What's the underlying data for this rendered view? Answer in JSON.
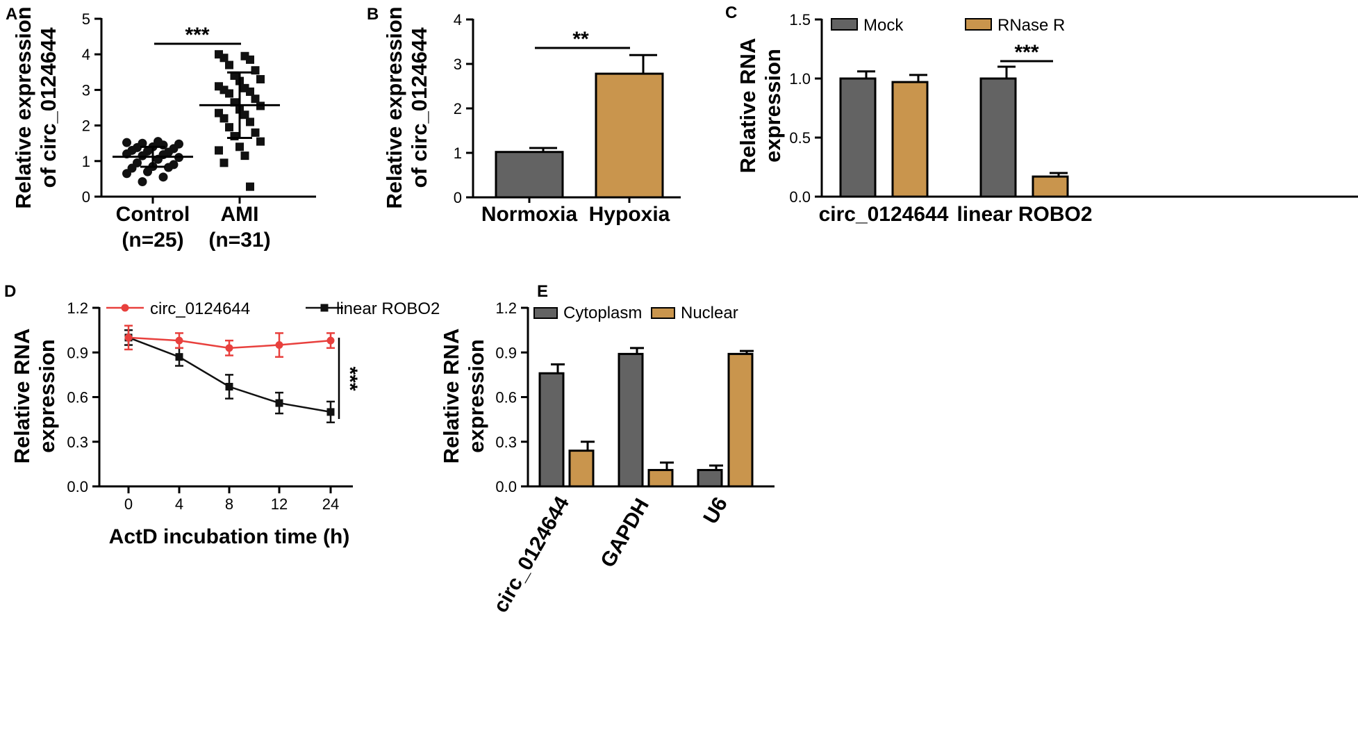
{
  "colors": {
    "gray": "#636363",
    "tan": "#C9954D",
    "red": "#E8403D",
    "black": "#111111"
  },
  "chart_data": [
    {
      "panel": "A",
      "type": "scatter",
      "ylabel": [
        "Relative expression",
        "of circ_0124644"
      ],
      "ylim": [
        0,
        5
      ],
      "yticks": [
        "0",
        "1",
        "2",
        "3",
        "4",
        "5"
      ],
      "categories": [
        {
          "name": "Control",
          "n": "(n=25)"
        },
        {
          "name": "AMI",
          "n": "(n=31)"
        }
      ],
      "groups": [
        {
          "name": "Control",
          "mean": 1.12,
          "sd": 0.28,
          "points": [
            1.52,
            1.45,
            1.5,
            1.48,
            1.55,
            1.38,
            1.35,
            1.4,
            1.3,
            1.25,
            1.28,
            1.2,
            1.18,
            1.15,
            1.1,
            1.05,
            0.95,
            0.9,
            0.85,
            0.8,
            0.82,
            0.7,
            0.65,
            0.55,
            0.42
          ]
        },
        {
          "name": "AMI",
          "mean": 2.57,
          "sd": 0.92,
          "points": [
            4.0,
            3.95,
            3.9,
            3.85,
            3.7,
            3.55,
            3.4,
            3.3,
            3.25,
            3.1,
            3.05,
            3.0,
            2.95,
            2.9,
            2.75,
            2.65,
            2.55,
            2.45,
            2.35,
            2.3,
            2.2,
            2.1,
            1.95,
            1.8,
            1.7,
            1.55,
            1.4,
            1.3,
            1.15,
            0.95,
            0.28
          ]
        }
      ],
      "significance": "***"
    },
    {
      "panel": "B",
      "type": "bar",
      "ylabel": [
        "Relative expression",
        "of circ_0124644"
      ],
      "ylim": [
        0,
        4
      ],
      "yticks": [
        "0",
        "1",
        "2",
        "3",
        "4"
      ],
      "categories": [
        "Normoxia",
        "Hypoxia"
      ],
      "values": [
        1.02,
        2.78
      ],
      "errors": [
        0.09,
        0.42
      ],
      "significance": "**"
    },
    {
      "panel": "C",
      "type": "bar",
      "ylabel": [
        "Relative RNA",
        "expression"
      ],
      "ylim": [
        0,
        1.5
      ],
      "yticks": [
        "0.0",
        "0.5",
        "1.0",
        "1.5"
      ],
      "categories": [
        "circ_0124644",
        "linear ROBO2"
      ],
      "series": [
        {
          "name": "Mock",
          "values": [
            1.0,
            1.0
          ],
          "errors": [
            0.06,
            0.1
          ]
        },
        {
          "name": "RNase R",
          "values": [
            0.97,
            0.17
          ],
          "errors": [
            0.06,
            0.03
          ]
        }
      ],
      "significance": "***"
    },
    {
      "panel": "D",
      "type": "line",
      "xlabel": "ActD incubation time (h)",
      "ylabel": [
        "Relative RNA",
        "expression"
      ],
      "ylim": [
        0,
        1.2
      ],
      "yticks": [
        "0.0",
        "0.3",
        "0.6",
        "0.9",
        "1.2"
      ],
      "x": [
        "0",
        "4",
        "8",
        "12",
        "24"
      ],
      "series": [
        {
          "name": "circ_0124644",
          "values": [
            1.0,
            0.98,
            0.93,
            0.95,
            0.98
          ],
          "errors": [
            0.08,
            0.05,
            0.05,
            0.08,
            0.05
          ]
        },
        {
          "name": "linear ROBO2",
          "values": [
            1.0,
            0.87,
            0.67,
            0.56,
            0.5
          ],
          "errors": [
            0.05,
            0.06,
            0.08,
            0.07,
            0.07
          ]
        }
      ],
      "significance": "***"
    },
    {
      "panel": "E",
      "type": "bar",
      "ylabel": [
        "Relative RNA",
        "expression"
      ],
      "ylim": [
        0,
        1.2
      ],
      "yticks": [
        "0.0",
        "0.3",
        "0.6",
        "0.9",
        "1.2"
      ],
      "categories": [
        "circ_0124644",
        "GAPDH",
        "U6"
      ],
      "series": [
        {
          "name": "Cytoplasm",
          "values": [
            0.76,
            0.89,
            0.11
          ],
          "errors": [
            0.06,
            0.04,
            0.03
          ]
        },
        {
          "name": "Nuclear",
          "values": [
            0.24,
            0.11,
            0.89
          ],
          "errors": [
            0.06,
            0.05,
            0.02
          ]
        }
      ]
    }
  ]
}
